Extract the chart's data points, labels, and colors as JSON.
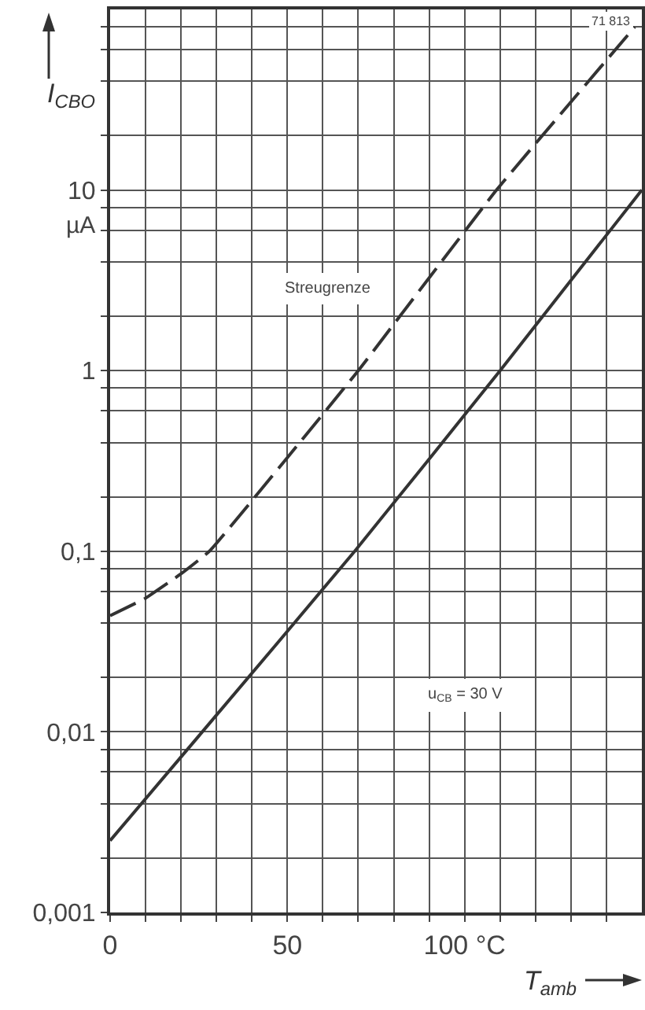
{
  "chart_data": {
    "type": "line",
    "xlabel": "T$_{amb}$",
    "ylabel": "I$_{CBO}$",
    "log": "y",
    "grid": true,
    "marker": "none",
    "xlim": [
      0,
      150
    ],
    "xticks": [
      0,
      {
        "value": 10,
        "label": null
      },
      {
        "value": 20,
        "label": null
      },
      {
        "value": 30,
        "label": null
      },
      {
        "value": 40,
        "label": null
      },
      50,
      {
        "value": 60,
        "label": null
      },
      {
        "value": 70,
        "label": null
      },
      {
        "value": 80,
        "label": null
      },
      {
        "value": 90,
        "label": null
      },
      {
        "value": 100,
        "label": "100 °C"
      },
      {
        "value": 110,
        "label": null
      },
      {
        "value": 120,
        "label": null
      },
      {
        "value": 130,
        "label": null
      },
      {
        "value": 140,
        "label": null
      }
    ],
    "ylim": [
      0.001,
      100
    ],
    "yticks": [
      {
        "value": 0.001,
        "label": "0,001"
      },
      {
        "value": 0.002,
        "label": null
      },
      {
        "value": 0.004,
        "label": null
      },
      {
        "value": 0.006,
        "label": null
      },
      {
        "value": 0.008,
        "label": null
      },
      {
        "value": 0.01,
        "label": "0,01"
      },
      {
        "value": 0.02,
        "label": null
      },
      {
        "value": 0.04,
        "label": null
      },
      {
        "value": 0.06,
        "label": null
      },
      {
        "value": 0.08,
        "label": null
      },
      {
        "value": 0.1,
        "label": "0,1"
      },
      {
        "value": 0.2,
        "label": null
      },
      {
        "value": 0.4,
        "label": null
      },
      {
        "value": 0.6,
        "label": null
      },
      {
        "value": 0.8,
        "label": null
      },
      1,
      {
        "value": 2,
        "label": null
      },
      {
        "value": 4,
        "label": null
      },
      {
        "value": 6,
        "label": null
      },
      {
        "value": 8,
        "label": null
      },
      10,
      {
        "value": 20,
        "label": null
      },
      {
        "value": 40,
        "label": null
      },
      {
        "value": 60,
        "label": null
      },
      {
        "value": 80,
        "label": null
      }
    ],
    "series": [
      {
        "color": "#333333",
        "line_style": "dashed",
        "x": [
          0,
          10,
          20,
          28,
          50,
          70,
          109,
          148
        ],
        "values": [
          0.044,
          0.055,
          0.075,
          0.1,
          0.33,
          1,
          10,
          80
        ]
      },
      {
        "color": "#333333",
        "line_style": "solid",
        "x": [
          0,
          26,
          69,
          110,
          150
        ],
        "values": [
          0.0025,
          0.01,
          0.1,
          1,
          10
        ]
      }
    ],
    "annotations": [
      "µA",
      "Streugrenze",
      "u$_{CB}$ = 30 V",
      "71 813"
    ]
  }
}
